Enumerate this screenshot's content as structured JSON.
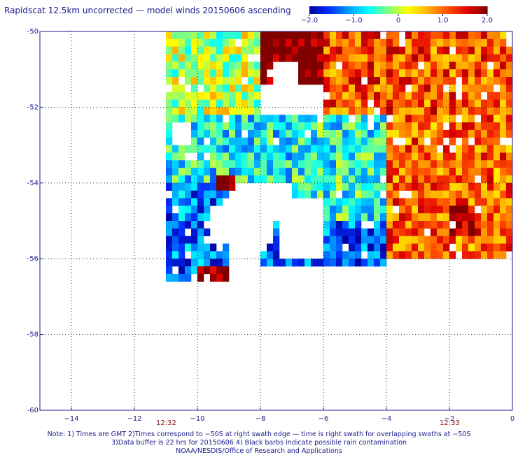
{
  "title": "Rapidscat 12.5km uncorrected — model winds 20150606 ascending",
  "colorbar": {
    "ticks": [
      "−2.0",
      "−1.0",
      "0",
      "1.0",
      "2.0"
    ],
    "tick_values": [
      -2.0,
      -1.0,
      0,
      1.0,
      2.0
    ],
    "colors": [
      "#0000a0",
      "#0030ff",
      "#00a0ff",
      "#00ffff",
      "#80ff80",
      "#ffff00",
      "#ffb000",
      "#ff5000",
      "#e00000",
      "#800000"
    ]
  },
  "chart_data": {
    "type": "heatmap",
    "title": "Rapidscat 12.5km uncorrected — model winds 20150606 ascending",
    "xlabel": "",
    "ylabel": "",
    "xlim": [
      -15,
      0
    ],
    "ylim": [
      -60,
      -50
    ],
    "x_ticks": [
      -14,
      -12,
      -10,
      -8,
      -6,
      -4,
      -2,
      0
    ],
    "x_tick_labels": [
      "−14",
      "−12",
      "−10",
      "−8",
      "−6",
      "−4",
      "−2",
      "0"
    ],
    "y_ticks": [
      -50,
      -52,
      -54,
      -56,
      -58,
      -60
    ],
    "y_tick_labels": [
      "-50",
      "-52",
      "-54",
      "-56",
      "-58",
      "-60"
    ],
    "grid": true,
    "value_range": [
      -2.0,
      2.0
    ],
    "resolution_deg": 0.2,
    "swath_regions": [
      {
        "name": "north-high",
        "lon": [
          -8.0,
          -6.0
        ],
        "lat": [
          -51.4,
          -50.0
        ],
        "value": 2.2
      },
      {
        "name": "north-east",
        "lon": [
          -6.0,
          0.0
        ],
        "lat": [
          -52.2,
          -50.0
        ],
        "value": 1.1
      },
      {
        "name": "north-west",
        "lon": [
          -11.0,
          -8.0
        ],
        "lat": [
          -52.2,
          -50.0
        ],
        "value": 0.0
      },
      {
        "name": "middle-west",
        "lon": [
          -11.0,
          -7.0
        ],
        "lat": [
          -54.0,
          -52.2
        ],
        "value": -0.7
      },
      {
        "name": "middle-center",
        "lon": [
          -7.0,
          -4.0
        ],
        "lat": [
          -55.0,
          -52.2
        ],
        "value": -0.6
      },
      {
        "name": "middle-east",
        "lon": [
          -4.0,
          0.0
        ],
        "lat": [
          -56.0,
          -52.2
        ],
        "value": 1.0
      },
      {
        "name": "east-high",
        "lon": [
          -2.0,
          -1.0
        ],
        "lat": [
          -55.4,
          -54.6
        ],
        "value": 1.9
      },
      {
        "name": "south-west",
        "lon": [
          -11.0,
          -9.0
        ],
        "lat": [
          -56.6,
          -54.0
        ],
        "value": -1.3
      },
      {
        "name": "south-center",
        "lon": [
          -8.0,
          -4.0
        ],
        "lat": [
          -56.2,
          -55.0
        ],
        "value": -1.4
      },
      {
        "name": "west-spot",
        "lon": [
          -9.4,
          -8.8
        ],
        "lat": [
          -54.2,
          -53.8
        ],
        "value": 2.3
      },
      {
        "name": "south-edge-red",
        "lon": [
          -10.0,
          -9.0
        ],
        "lat": [
          -56.6,
          -56.2
        ],
        "value": 2.1
      }
    ],
    "gaps": [
      {
        "lon": [
          -9.6,
          -7.6
        ],
        "lat": [
          -55.6,
          -54.6
        ]
      },
      {
        "lon": [
          -7.4,
          -6.0
        ],
        "lat": [
          -56.0,
          -54.4
        ]
      },
      {
        "lon": [
          -7.6,
          -6.8
        ],
        "lat": [
          -51.4,
          -50.8
        ]
      },
      {
        "lon": [
          -10.8,
          -10.2
        ],
        "lat": [
          -53.0,
          -52.4
        ]
      }
    ],
    "time_labels": [
      {
        "lon": -11.0,
        "text": "12:32"
      },
      {
        "lon": -2.0,
        "text": "12:33"
      }
    ]
  },
  "notes": [
    "Note: 1) Times are GMT 2)Times correspond to −50S at right swath edge — time is right swath for overlapping swaths at −50S",
    "3)Data buffer is 22 hrs for 20150606 4) Black barbs indicate possible rain contamination",
    "NOAA/NESDIS/Office of Research and Applications"
  ]
}
